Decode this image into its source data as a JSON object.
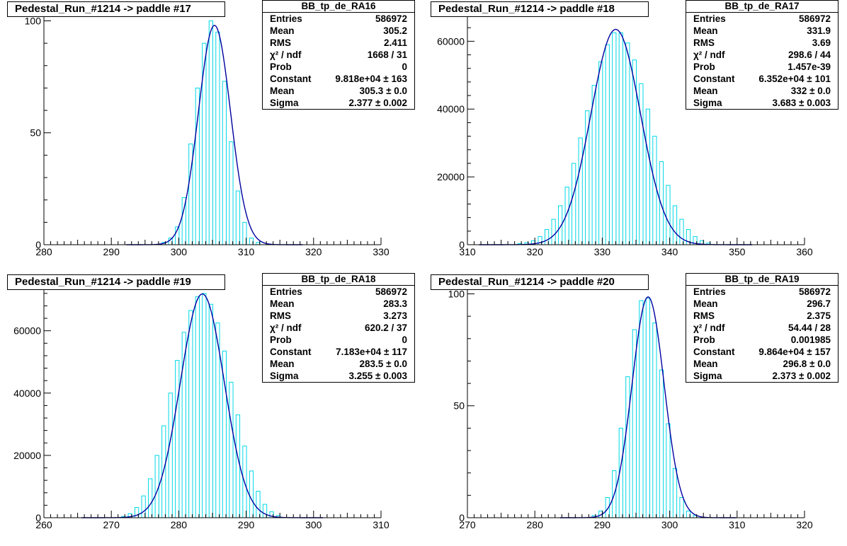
{
  "chart_data": [
    {
      "type": "bar",
      "title": "Pedestal_Run_#1214 -> paddle #17",
      "xlim": [
        280,
        330
      ],
      "ylim": [
        0,
        103
      ],
      "xticks": [
        "280",
        "290",
        "300",
        "310",
        "320",
        "330"
      ],
      "yticks": [
        "0",
        "50",
        "100"
      ],
      "bin_width": 1,
      "x": [
        295,
        296,
        297,
        298,
        299,
        300,
        301,
        302,
        303,
        304,
        305,
        306,
        307,
        308,
        309,
        310,
        311,
        312,
        313,
        314,
        315
      ],
      "values": [
        0,
        0,
        0,
        1,
        3,
        8,
        21,
        45,
        70,
        90,
        100,
        95,
        73,
        46,
        24,
        10,
        3,
        1,
        0,
        0,
        0
      ],
      "stats": {
        "name": "BB_tp_de_RA16",
        "rows": [
          [
            "Entries",
            "586972"
          ],
          [
            "Mean",
            "305.2"
          ],
          [
            "RMS",
            "2.411"
          ],
          [
            "χ² / ndf",
            "1668 / 31"
          ],
          [
            "Prob",
            "0"
          ],
          [
            "Constant",
            "9.818e+04 ± 163"
          ],
          [
            "Mean",
            "305.3 ± 0.0"
          ],
          [
            "Sigma",
            "2.377 ± 0.002"
          ]
        ]
      },
      "fit": {
        "function": "gaus",
        "constant": 98,
        "mean": 305.3,
        "sigma": 2.377
      }
    },
    {
      "type": "bar",
      "title": "Pedestal_Run_#1214 -> paddle #18",
      "xlim": [
        310,
        360
      ],
      "ylim": [
        0,
        68000
      ],
      "xticks": [
        "310",
        "320",
        "330",
        "340",
        "350",
        "360"
      ],
      "yticks": [
        "0",
        "20000",
        "40000",
        "60000"
      ],
      "bin_width": 1,
      "x": [
        318,
        319,
        320,
        321,
        322,
        323,
        324,
        325,
        326,
        327,
        328,
        329,
        330,
        331,
        332,
        333,
        334,
        335,
        336,
        337,
        338,
        339,
        340,
        341,
        342,
        343,
        344,
        345,
        346
      ],
      "values": [
        300,
        600,
        1200,
        2400,
        4500,
        7500,
        11500,
        17000,
        24000,
        31500,
        39500,
        47000,
        54000,
        59000,
        62500,
        62500,
        59500,
        54500,
        47500,
        40000,
        32000,
        24500,
        17500,
        11500,
        7500,
        4500,
        2400,
        1200,
        500
      ],
      "stats": {
        "name": "BB_tp_de_RA17",
        "rows": [
          [
            "Entries",
            "586972"
          ],
          [
            "Mean",
            "331.9"
          ],
          [
            "RMS",
            "3.69"
          ],
          [
            "χ² / ndf",
            "298.6 / 44"
          ],
          [
            "Prob",
            "1.457e-39"
          ],
          [
            "Constant",
            "6.352e+04 ± 101"
          ],
          [
            "Mean",
            "332 ± 0.0"
          ],
          [
            "Sigma",
            "3.683 ± 0.003"
          ]
        ]
      },
      "fit": {
        "function": "gaus",
        "constant": 63520,
        "mean": 332,
        "sigma": 3.683
      }
    },
    {
      "type": "bar",
      "title": "Pedestal_Run_#1214 -> paddle #19",
      "xlim": [
        260,
        310
      ],
      "ylim": [
        0,
        74000
      ],
      "xticks": [
        "260",
        "270",
        "280",
        "290",
        "300",
        "310"
      ],
      "yticks": [
        "0",
        "20000",
        "40000",
        "60000"
      ],
      "bin_width": 1,
      "x": [
        272,
        273,
        274,
        275,
        276,
        277,
        278,
        279,
        280,
        281,
        282,
        283,
        284,
        285,
        286,
        287,
        288,
        289,
        290,
        291,
        292,
        293,
        294,
        295
      ],
      "values": [
        400,
        1300,
        3300,
        7000,
        12500,
        20000,
        29500,
        40000,
        50500,
        59500,
        66500,
        71000,
        72000,
        68500,
        62500,
        53500,
        43500,
        33000,
        23000,
        15000,
        8500,
        4300,
        1900,
        700
      ],
      "stats": {
        "name": "BB_tp_de_RA18",
        "rows": [
          [
            "Entries",
            "586972"
          ],
          [
            "Mean",
            "283.3"
          ],
          [
            "RMS",
            "3.273"
          ],
          [
            "χ² / ndf",
            "620.2 / 37"
          ],
          [
            "Prob",
            "0"
          ],
          [
            "Constant",
            "7.183e+04 ± 117"
          ],
          [
            "Mean",
            "283.5 ± 0.0"
          ],
          [
            "Sigma",
            "3.255 ± 0.003"
          ]
        ]
      },
      "fit": {
        "function": "gaus",
        "constant": 71830,
        "mean": 283.5,
        "sigma": 3.255
      }
    },
    {
      "type": "bar",
      "title": "Pedestal_Run_#1214 -> paddle #20",
      "xlim": [
        270,
        320
      ],
      "ylim": [
        0,
        103
      ],
      "xticks": [
        "270",
        "280",
        "290",
        "300",
        "310",
        "320"
      ],
      "yticks": [
        "0",
        "50",
        "100"
      ],
      "bin_width": 1,
      "x": [
        288,
        289,
        290,
        291,
        292,
        293,
        294,
        295,
        296,
        297,
        298,
        299,
        300,
        301,
        302,
        303,
        304,
        305,
        306
      ],
      "values": [
        0,
        1,
        3,
        9,
        21,
        40,
        63,
        84,
        97,
        98,
        87,
        66,
        42,
        22,
        9,
        3,
        1,
        0,
        0
      ],
      "stats": {
        "name": "BB_tp_de_RA19",
        "rows": [
          [
            "Entries",
            "586972"
          ],
          [
            "Mean",
            "296.7"
          ],
          [
            "RMS",
            "2.375"
          ],
          [
            "χ² / ndf",
            "54.44 / 28"
          ],
          [
            "Prob",
            "0.001985"
          ],
          [
            "Constant",
            "9.864e+04 ± 157"
          ],
          [
            "Mean",
            "296.8 ± 0.0"
          ],
          [
            "Sigma",
            "2.373 ± 0.002"
          ]
        ]
      },
      "fit": {
        "function": "gaus",
        "constant": 98.64,
        "mean": 296.8,
        "sigma": 2.373
      }
    }
  ],
  "colors": {
    "histogram": "#00d8e8",
    "fit": "#0000a0",
    "axis": "#000000"
  }
}
